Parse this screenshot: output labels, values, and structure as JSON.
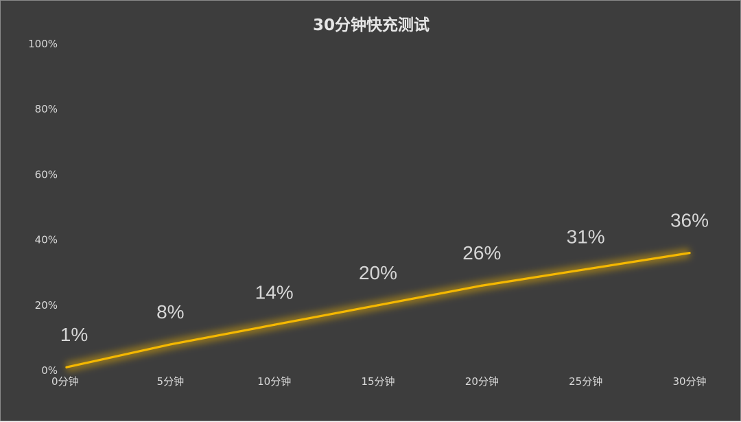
{
  "chart_data": {
    "type": "line",
    "title": "30分钟快充测试",
    "xlabel": "",
    "ylabel": "",
    "categories": [
      "0分钟",
      "5分钟",
      "10分钟",
      "15分钟",
      "20分钟",
      "25分钟",
      "30分钟"
    ],
    "series": [
      {
        "values": [
          1,
          8,
          14,
          20,
          26,
          31,
          36
        ],
        "labels": [
          "1%",
          "8%",
          "14%",
          "20%",
          "26%",
          "31%",
          "36%"
        ],
        "color": "#f5b800"
      }
    ],
    "ylim": [
      0,
      100
    ],
    "yticks": [
      "0%",
      "20%",
      "40%",
      "60%",
      "80%",
      "100%"
    ],
    "grid": false,
    "legend": "none",
    "background": "#3d3d3d"
  }
}
